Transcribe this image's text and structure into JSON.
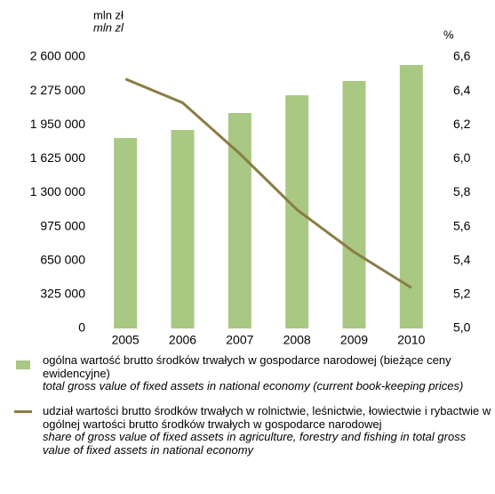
{
  "chart_data": {
    "type": "bar-line",
    "y_label": [
      "mln zł",
      "mln zl"
    ],
    "y2_label": "%",
    "categories": [
      "2005",
      "2006",
      "2007",
      "2008",
      "2009",
      "2010"
    ],
    "series": [
      {
        "name": "ogólna wartość brutto środków trwałych w gospodarce narodowej (bieżące ceny ewidencyjne)",
        "name_en": "total gross value of fixed assets in national economy (current book-keeping prices)",
        "type": "bar",
        "color": "#a9c883",
        "values": [
          1824000,
          1901000,
          2063000,
          2233000,
          2370000,
          2523000
        ]
      },
      {
        "name": "udział wartości brutto środków trwałych w rolnictwie, leśnictwie, łowiectwie i rybactwie w ogólnej wartości brutto środków trwałych w gospodarce narodowej",
        "name_en": "share of gross value of fixed assets in agriculture, forestry and fishing in total gross value of fixed assets in national economy",
        "type": "line",
        "axis": "y2",
        "color": "#8a7d45",
        "values": [
          6.47,
          6.33,
          6.03,
          5.7,
          5.45,
          5.24
        ]
      }
    ],
    "ylim": [
      0,
      2600000
    ],
    "yticks": [
      0,
      {
        "value": 325000,
        "label": "325 000"
      },
      {
        "value": 650000,
        "label": "650 000"
      },
      {
        "value": 975000,
        "label": "975 000"
      },
      {
        "value": 1300000,
        "label": "1 300 000"
      },
      {
        "value": 1625000,
        "label": "1 625 000"
      },
      {
        "value": 1950000,
        "label": "1 950 000"
      },
      {
        "value": 2275000,
        "label": "2 275 000"
      },
      {
        "value": 2600000,
        "label": "2 600 000"
      }
    ],
    "y2lim": [
      5.0,
      6.6
    ],
    "y2ticks": [
      {
        "value": 5.0,
        "label": "5,0"
      },
      {
        "value": 5.2,
        "label": "5,2"
      },
      {
        "value": 5.4,
        "label": "5,4"
      },
      {
        "value": 5.6,
        "label": "5,6"
      },
      {
        "value": 5.8,
        "label": "5,8"
      },
      {
        "value": 6.0,
        "label": "6,0"
      },
      {
        "value": 6.2,
        "label": "6,2"
      },
      {
        "value": 6.4,
        "label": "6,4"
      },
      {
        "value": 6.6,
        "label": "6,6"
      }
    ],
    "grid": false
  }
}
